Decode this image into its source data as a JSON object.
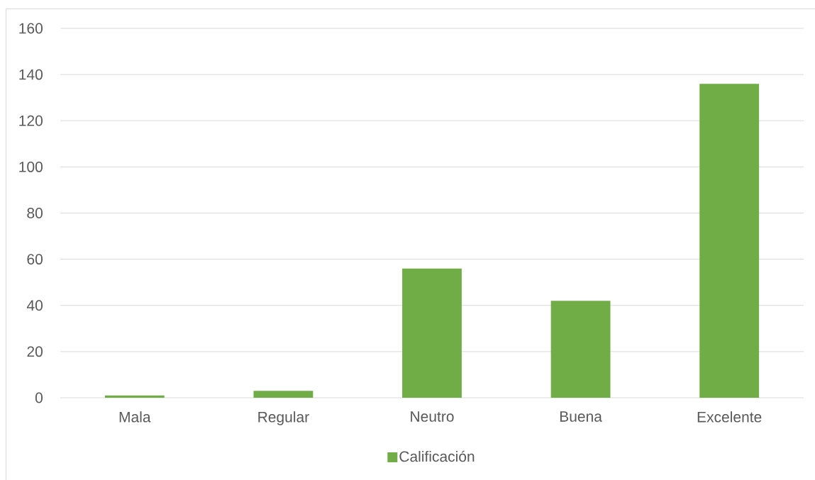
{
  "chart_data": {
    "type": "bar",
    "categories": [
      "Mala",
      "Regular",
      "Neutro",
      "Buena",
      "Excelente"
    ],
    "series": [
      {
        "name": "Calificación",
        "color": "#70ad47",
        "values": [
          1,
          3,
          56,
          42,
          136
        ]
      }
    ],
    "ylim": [
      0,
      160
    ],
    "yticks": [
      0,
      20,
      40,
      60,
      80,
      100,
      120,
      140,
      160
    ],
    "grid": "y",
    "legend": "bottom"
  }
}
